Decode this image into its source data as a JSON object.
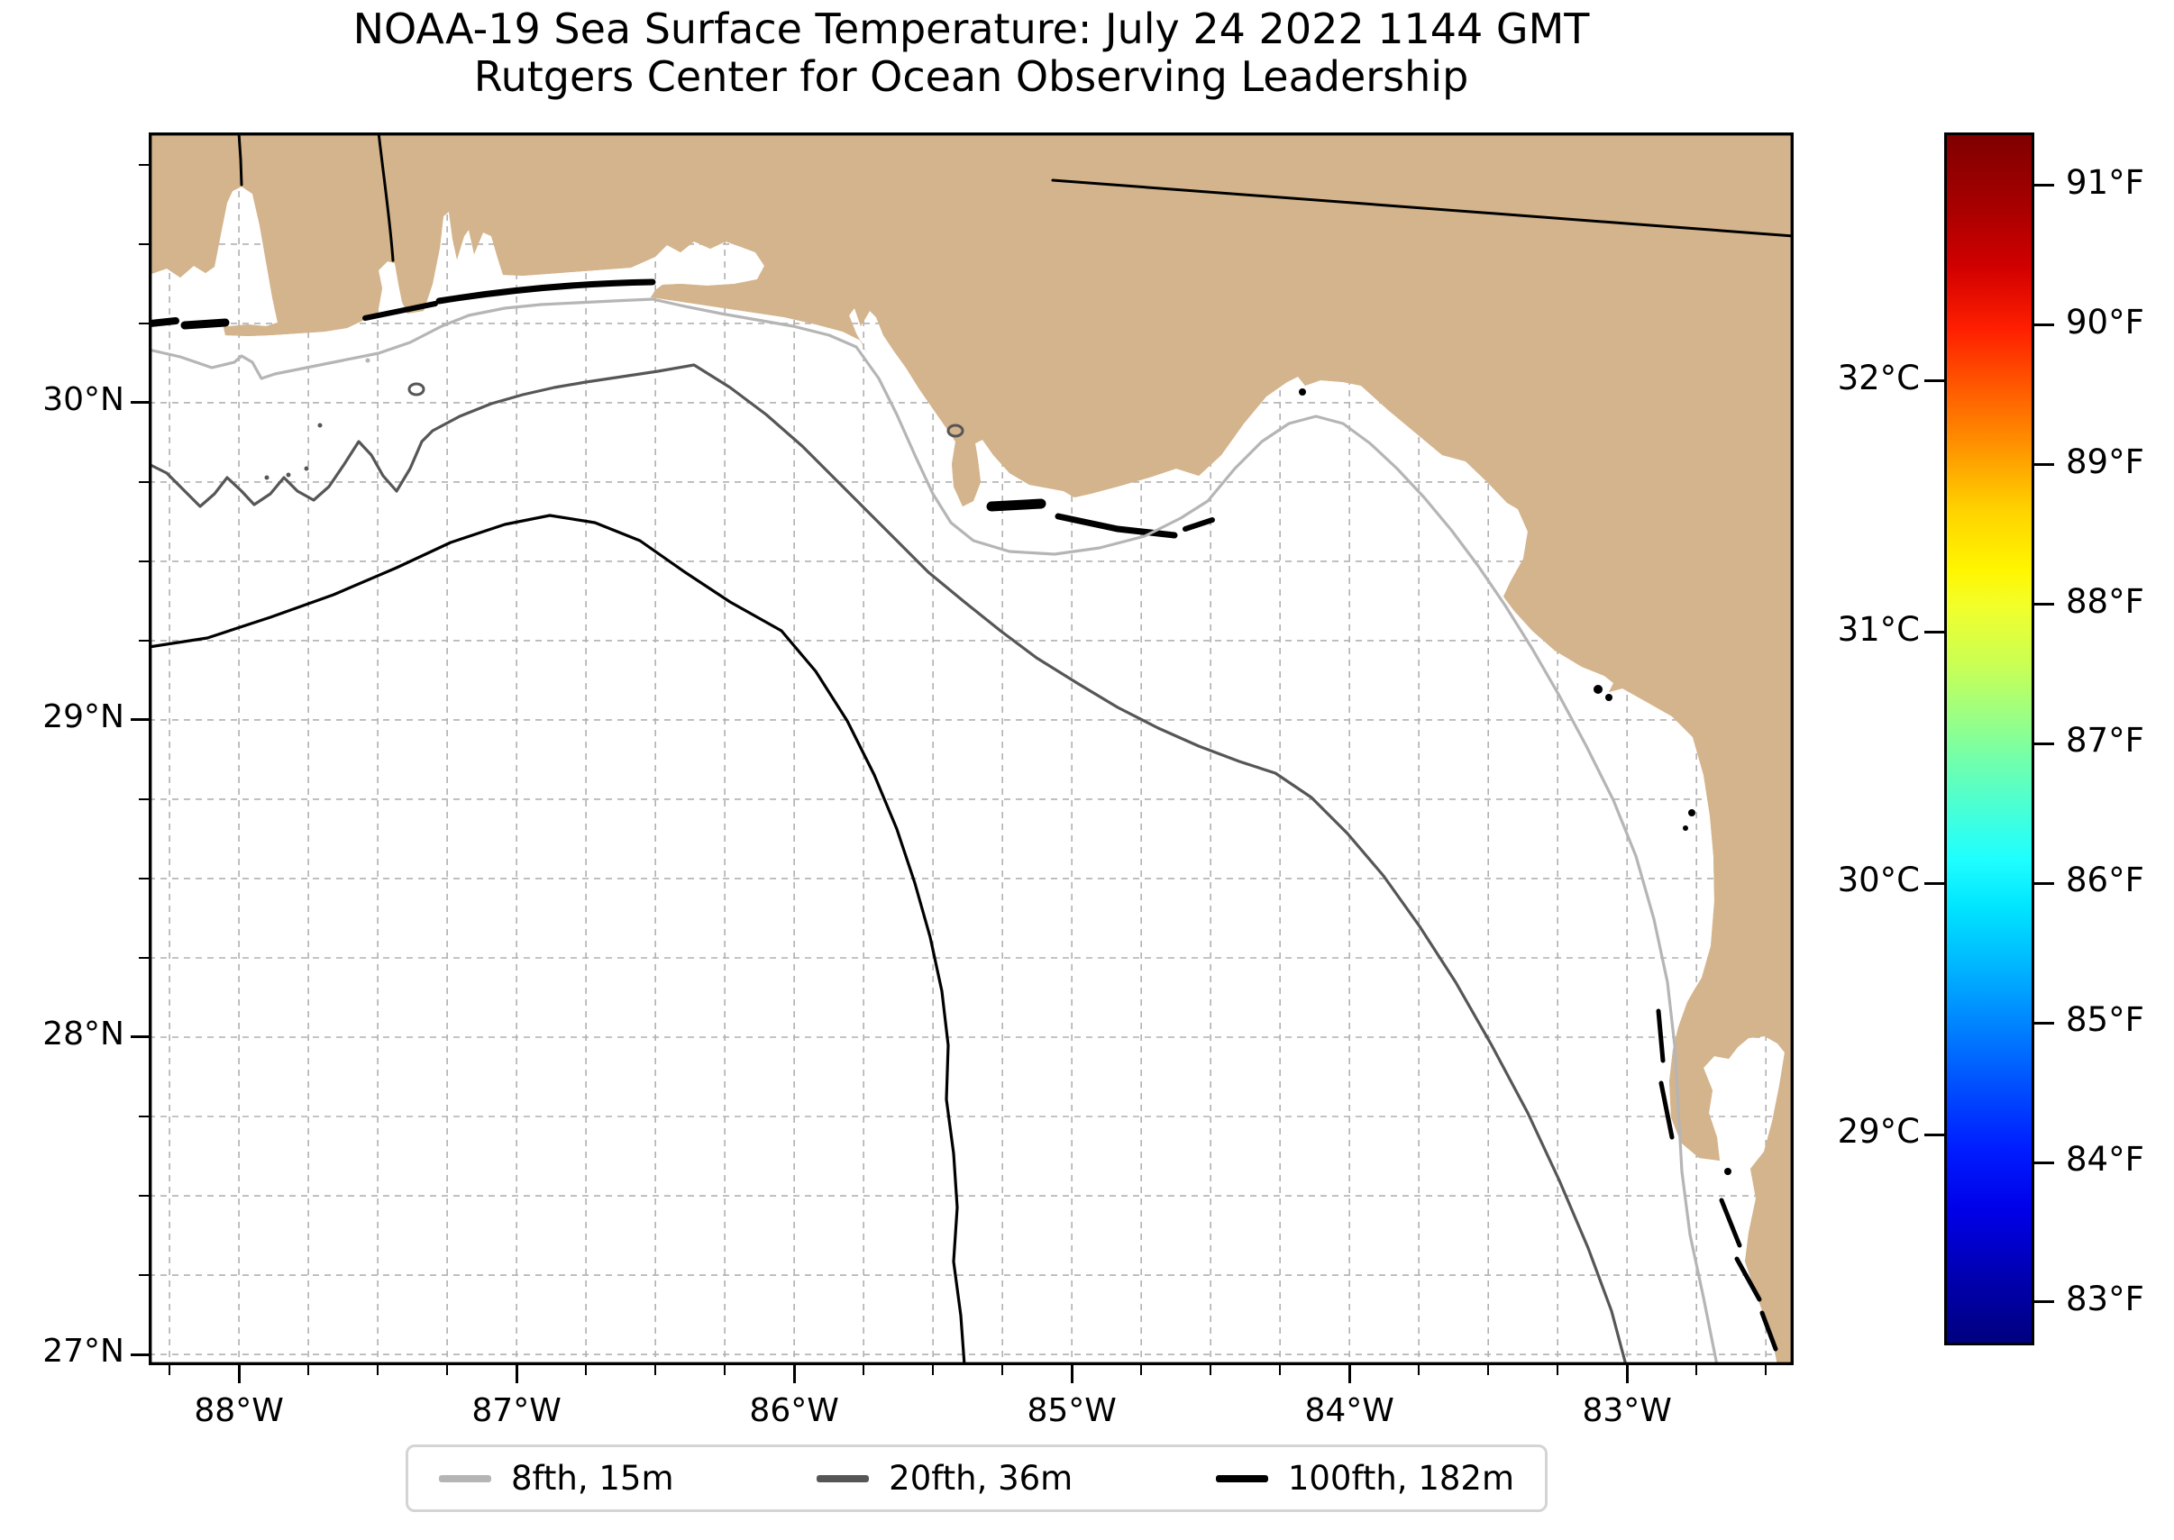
{
  "title": {
    "line1": "NOAA-19 Sea Surface Temperature: July 24 2022 1144 GMT",
    "line2": "Rutgers Center for Ocean Observing Leadership"
  },
  "map": {
    "lon_ticks": [
      {
        "label": "88°W",
        "value": -88
      },
      {
        "label": "87°W",
        "value": -87
      },
      {
        "label": "86°W",
        "value": -86
      },
      {
        "label": "85°W",
        "value": -85
      },
      {
        "label": "84°W",
        "value": -84
      },
      {
        "label": "83°W",
        "value": -83
      }
    ],
    "lat_ticks": [
      {
        "label": "30°N",
        "value": 30
      },
      {
        "label": "29°N",
        "value": 29
      },
      {
        "label": "28°N",
        "value": 28
      },
      {
        "label": "27°N",
        "value": 27
      }
    ],
    "view": {
      "lon_min": -88.325,
      "lon_max": -82.4,
      "lat_min": 26.966,
      "lat_max": 30.852,
      "minor_step_deg": 0.25,
      "grid": "dashed"
    },
    "colors": {
      "land": "#d4b48c",
      "ocean": "#ffffff",
      "lake": "#94b4df",
      "coastline": "#000000",
      "gridline": "#b0b0b0"
    }
  },
  "colorbar": {
    "colormap": "jet",
    "range_f": [
      82.69,
      91.38
    ],
    "f_ticks": [
      {
        "label": "91°F",
        "value": 91
      },
      {
        "label": "90°F",
        "value": 90
      },
      {
        "label": "89°F",
        "value": 89
      },
      {
        "label": "88°F",
        "value": 88
      },
      {
        "label": "87°F",
        "value": 87
      },
      {
        "label": "86°F",
        "value": 86
      },
      {
        "label": "85°F",
        "value": 85
      },
      {
        "label": "84°F",
        "value": 84
      },
      {
        "label": "83°F",
        "value": 83
      }
    ],
    "c_ticks": [
      {
        "label": "32°C",
        "value": 32
      },
      {
        "label": "31°C",
        "value": 31
      },
      {
        "label": "30°C",
        "value": 30
      },
      {
        "label": "29°C",
        "value": 29
      }
    ]
  },
  "legend": {
    "items": [
      {
        "label": "8fth, 15m",
        "color": "#b5b5b5"
      },
      {
        "label": "20fth, 36m",
        "color": "#565656"
      },
      {
        "label": "100fth, 182m",
        "color": "#000000"
      }
    ]
  }
}
